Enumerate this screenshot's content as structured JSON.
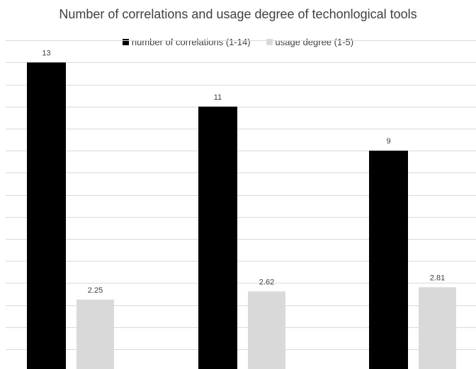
{
  "chart_data": {
    "type": "bar",
    "title": "Number of correlations and usage degree of techonlogical tools",
    "categories": [
      "",
      "",
      ""
    ],
    "series": [
      {
        "name": "number of correlations (1-14)",
        "values": [
          13,
          11,
          9
        ],
        "labels": [
          "13",
          "11",
          "9"
        ],
        "color": "#000000"
      },
      {
        "name": "usage degree (1-5)",
        "values": [
          2.25,
          2.62,
          2.81
        ],
        "labels": [
          "2.25",
          "2.62",
          "2.81"
        ],
        "color": "#d9d9d9"
      }
    ],
    "ylim": [
      0,
      14
    ],
    "ytick_step": 1,
    "grid": true,
    "gridline_color": "#d9d9d9",
    "legend_position": "top"
  }
}
